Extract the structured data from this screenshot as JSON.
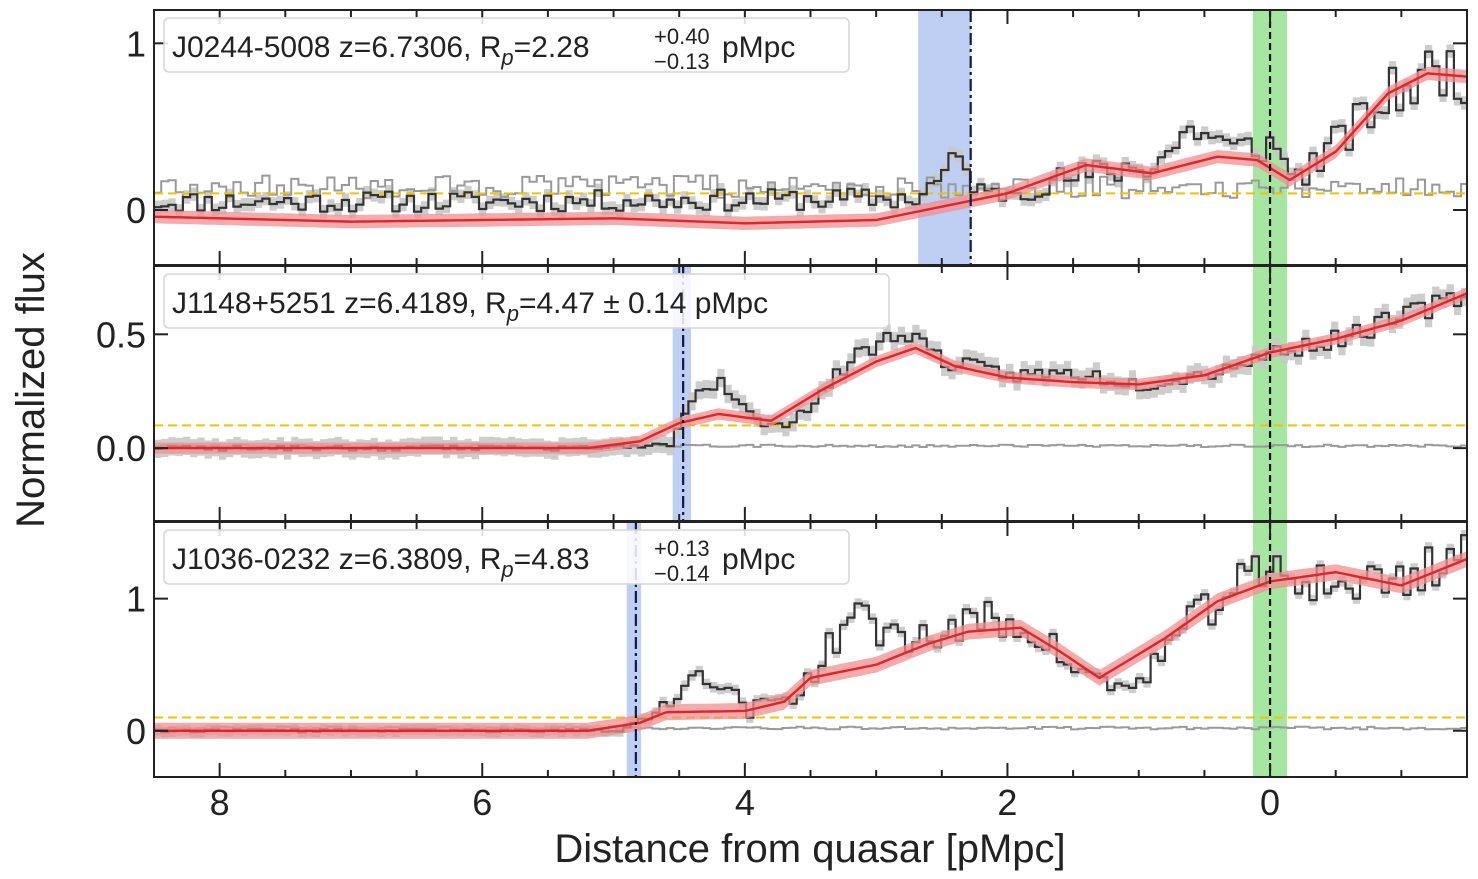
{
  "figure": {
    "xlabel": "Distance from quasar [pMpc]",
    "ylabel": "Normalized flux",
    "xlim": [
      8.5,
      -1.5
    ],
    "x_ticks": [
      8,
      6,
      4,
      2,
      0
    ],
    "x_tick_labels": [
      "8",
      "6",
      "4",
      "2",
      "0"
    ]
  },
  "colors": {
    "data_line": "#333333",
    "error_line": "#9a9a9a",
    "error_band": "#c8c8c8",
    "model_line": "#e0242a",
    "model_band": "#f08f8f",
    "threshold": "#f2c300",
    "proximity_region": "#a9bff0",
    "quasar_region": "#8fe08a"
  },
  "chart_data": [
    {
      "type": "line",
      "name": "J0244-5008",
      "label_main": "J0244-5008 z=6.7306, R",
      "label_sub": "p",
      "label_value": "=2.28",
      "label_err_plus": "+0.40",
      "label_err_minus": "−0.13",
      "label_unit": "pMpc",
      "ylim": [
        -0.33,
        1.2
      ],
      "y_ticks": [
        0,
        1
      ],
      "y_tick_labels": [
        "0",
        "1"
      ],
      "rp": 2.28,
      "rp_band": [
        2.28,
        2.68
      ],
      "quasar_band": [
        -0.13,
        0.13
      ],
      "threshold": 0.1,
      "seed": 11,
      "noise": 0.16,
      "error_level": 0.14,
      "transmission": [
        [
          8.5,
          0.05
        ],
        [
          6.0,
          0.05
        ],
        [
          4.0,
          0.06
        ],
        [
          2.7,
          0.07
        ],
        [
          2.4,
          0.3
        ],
        [
          2.2,
          0.08
        ],
        [
          1.5,
          0.2
        ],
        [
          0.9,
          0.28
        ],
        [
          0.6,
          0.5
        ],
        [
          0.3,
          0.35
        ],
        [
          0.05,
          0.4
        ],
        [
          -0.2,
          0.2
        ],
        [
          -0.55,
          0.45
        ],
        [
          -0.95,
          0.72
        ],
        [
          -1.3,
          0.85
        ],
        [
          -1.5,
          0.82
        ]
      ],
      "model": [
        [
          8.5,
          -0.04
        ],
        [
          7.0,
          -0.07
        ],
        [
          5.0,
          -0.05
        ],
        [
          4.0,
          -0.08
        ],
        [
          3.0,
          -0.06
        ],
        [
          2.5,
          0.02
        ],
        [
          2.0,
          0.1
        ],
        [
          1.4,
          0.27
        ],
        [
          0.9,
          0.22
        ],
        [
          0.4,
          0.32
        ],
        [
          0.1,
          0.3
        ],
        [
          -0.15,
          0.18
        ],
        [
          -0.5,
          0.35
        ],
        [
          -0.9,
          0.7
        ],
        [
          -1.2,
          0.82
        ],
        [
          -1.5,
          0.8
        ]
      ],
      "model_band_width": 0.04
    },
    {
      "type": "line",
      "name": "J1148+5251",
      "label_main": "J1148+5251 z=6.4189, R",
      "label_sub": "p",
      "label_value": "=4.47 ± 0.14 pMpc",
      "label_err_plus": "",
      "label_err_minus": "",
      "label_unit": "",
      "ylim": [
        -0.32,
        0.8
      ],
      "y_ticks": [
        0.0,
        0.5
      ],
      "y_tick_labels": [
        "0.0",
        "0.5"
      ],
      "rp": 4.47,
      "rp_band": [
        4.41,
        4.55
      ],
      "quasar_band": [
        -0.13,
        0.13
      ],
      "threshold": 0.1,
      "seed": 23,
      "noise": 0.05,
      "error_level": 0.01,
      "transmission": [
        [
          8.5,
          0.0
        ],
        [
          4.9,
          0.0
        ],
        [
          4.6,
          0.02
        ],
        [
          4.4,
          0.25
        ],
        [
          4.2,
          0.3
        ],
        [
          4.0,
          0.15
        ],
        [
          3.8,
          0.08
        ],
        [
          3.5,
          0.2
        ],
        [
          3.2,
          0.4
        ],
        [
          2.8,
          0.52
        ],
        [
          2.5,
          0.38
        ],
        [
          2.0,
          0.32
        ],
        [
          1.5,
          0.33
        ],
        [
          1.0,
          0.28
        ],
        [
          0.5,
          0.33
        ],
        [
          0.0,
          0.42
        ],
        [
          -0.5,
          0.48
        ],
        [
          -1.0,
          0.58
        ],
        [
          -1.5,
          0.68
        ]
      ],
      "model": [
        [
          8.5,
          0.0
        ],
        [
          5.2,
          0.0
        ],
        [
          4.8,
          0.03
        ],
        [
          4.5,
          0.11
        ],
        [
          4.2,
          0.15
        ],
        [
          3.8,
          0.12
        ],
        [
          3.4,
          0.26
        ],
        [
          3.0,
          0.38
        ],
        [
          2.7,
          0.44
        ],
        [
          2.4,
          0.36
        ],
        [
          2.0,
          0.31
        ],
        [
          1.5,
          0.29
        ],
        [
          1.0,
          0.28
        ],
        [
          0.5,
          0.32
        ],
        [
          0.0,
          0.42
        ],
        [
          -0.5,
          0.48
        ],
        [
          -1.0,
          0.56
        ],
        [
          -1.5,
          0.68
        ]
      ],
      "model_band_width": 0.025
    },
    {
      "type": "line",
      "name": "J1036-0232",
      "label_main": "J1036-0232 z=6.3809, R",
      "label_sub": "p",
      "label_value": "=4.83",
      "label_err_plus": "+0.13",
      "label_err_minus": "−0.14",
      "label_unit": "pMpc",
      "ylim": [
        -0.35,
        1.58
      ],
      "y_ticks": [
        0,
        1
      ],
      "y_tick_labels": [
        "0",
        "1"
      ],
      "rp": 4.83,
      "rp_band": [
        4.79,
        4.9
      ],
      "quasar_band": [
        -0.13,
        0.13
      ],
      "threshold": 0.1,
      "seed": 37,
      "noise": 0.12,
      "error_level": 0.02,
      "transmission": [
        [
          8.5,
          0.0
        ],
        [
          5.0,
          0.0
        ],
        [
          4.8,
          0.05
        ],
        [
          4.5,
          0.35
        ],
        [
          4.3,
          0.45
        ],
        [
          4.0,
          0.15
        ],
        [
          3.6,
          0.3
        ],
        [
          3.2,
          0.9
        ],
        [
          3.0,
          0.75
        ],
        [
          2.6,
          0.7
        ],
        [
          2.2,
          0.85
        ],
        [
          1.8,
          0.75
        ],
        [
          1.5,
          0.45
        ],
        [
          1.1,
          0.3
        ],
        [
          0.7,
          0.75
        ],
        [
          0.3,
          1.1
        ],
        [
          0.0,
          1.2
        ],
        [
          -0.5,
          1.1
        ],
        [
          -1.0,
          1.15
        ],
        [
          -1.5,
          1.4
        ]
      ],
      "model": [
        [
          8.5,
          0.0
        ],
        [
          5.2,
          0.0
        ],
        [
          4.8,
          0.06
        ],
        [
          4.6,
          0.14
        ],
        [
          4.0,
          0.15
        ],
        [
          3.7,
          0.22
        ],
        [
          3.5,
          0.4
        ],
        [
          3.0,
          0.5
        ],
        [
          2.6,
          0.66
        ],
        [
          2.3,
          0.75
        ],
        [
          1.9,
          0.78
        ],
        [
          1.6,
          0.6
        ],
        [
          1.3,
          0.4
        ],
        [
          0.8,
          0.7
        ],
        [
          0.4,
          0.98
        ],
        [
          0.0,
          1.13
        ],
        [
          -0.5,
          1.2
        ],
        [
          -1.0,
          1.1
        ],
        [
          -1.5,
          1.3
        ]
      ],
      "model_band_width": 0.06
    }
  ]
}
